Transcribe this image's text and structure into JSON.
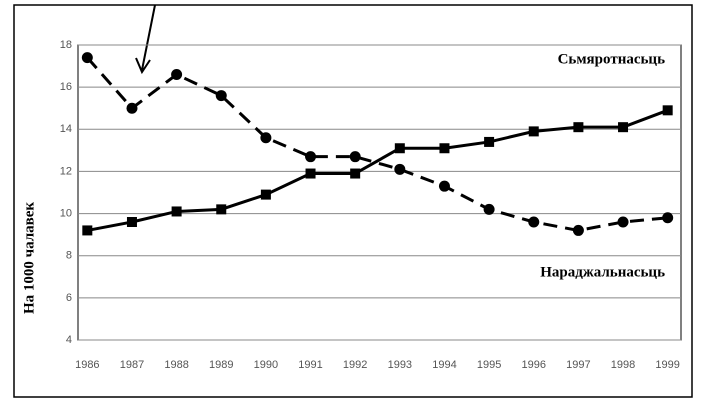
{
  "chart_data": {
    "type": "line",
    "y_label": "На 1000 чалавек",
    "categories": [
      "1986",
      "1987",
      "1988",
      "1989",
      "1990",
      "1991",
      "1992",
      "1993",
      "1994",
      "1995",
      "1996",
      "1997",
      "1998",
      "1999"
    ],
    "series": [
      {
        "name": "Сьмяротнасьць",
        "color": "#000000",
        "marker": "square",
        "dashed": false,
        "values": [
          9.2,
          9.6,
          10.1,
          10.2,
          10.9,
          11.9,
          11.9,
          13.1,
          13.1,
          13.4,
          13.9,
          14.1,
          14.1,
          14.9
        ]
      },
      {
        "name": "Нараджальнасьць",
        "color": "#000000",
        "marker": "circle",
        "dashed": true,
        "values": [
          17.4,
          15.0,
          16.6,
          15.6,
          13.6,
          12.7,
          12.7,
          12.1,
          11.3,
          10.2,
          9.6,
          9.2,
          9.6,
          9.8
        ]
      }
    ],
    "ylim": [
      4,
      18
    ],
    "yticks": [
      4,
      6,
      8,
      10,
      12,
      14,
      16,
      18
    ],
    "grid": true
  }
}
